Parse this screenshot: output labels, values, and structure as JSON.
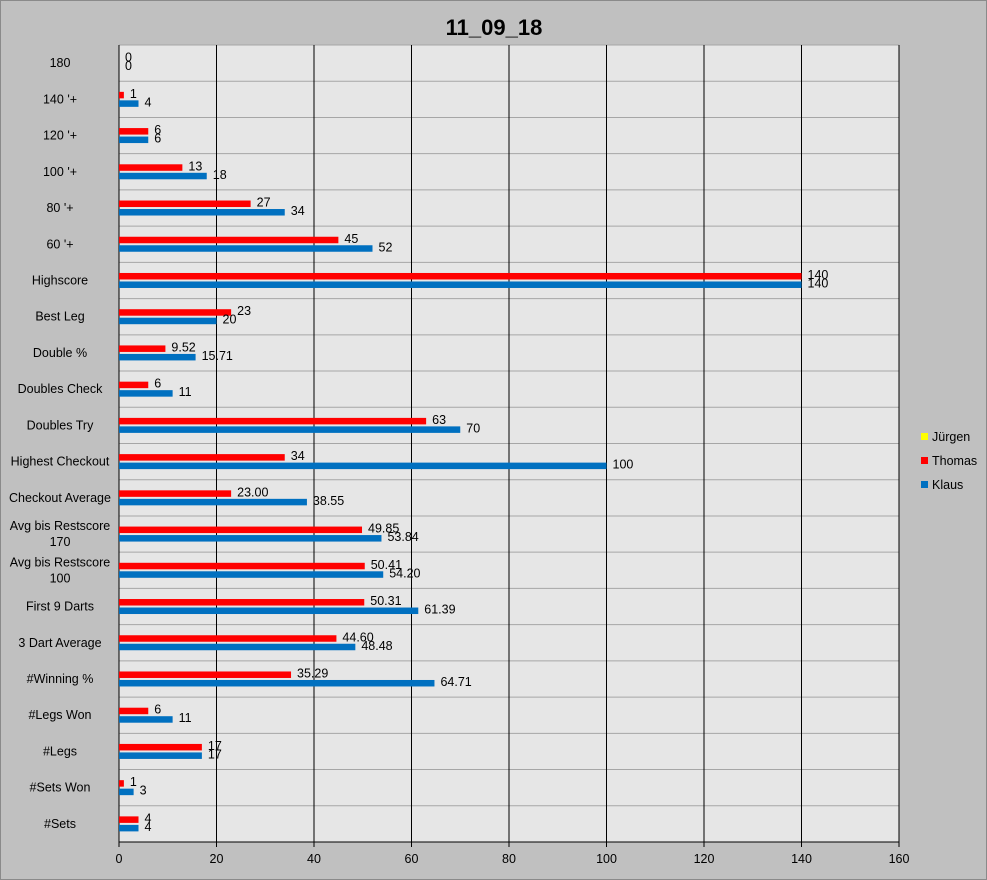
{
  "chart_data": {
    "type": "bar",
    "orientation": "horizontal",
    "title": "11_09_18",
    "xlim": [
      0,
      160
    ],
    "x_ticks": [
      0,
      20,
      40,
      60,
      80,
      100,
      120,
      140,
      160
    ],
    "grid": true,
    "legend_position": "right",
    "categories": [
      "180",
      "140 '+",
      "120 '+",
      "100 '+",
      "80 '+",
      "60 '+",
      "Highscore",
      "Best Leg",
      "Double %",
      "Doubles Check",
      "Doubles Try",
      "Highest Checkout",
      "Checkout Average",
      "Avg bis Restscore 170",
      "Avg bis Restscore 100",
      "First 9 Darts",
      "3 Dart Average",
      "#Winning %",
      "#Legs Won",
      "#Legs",
      "#Sets Won",
      "#Sets"
    ],
    "category_lines": {
      "Avg bis Restscore 170": [
        "Avg bis Restscore",
        "170"
      ],
      "Avg bis Restscore 100": [
        "Avg bis Restscore",
        "100"
      ]
    },
    "series": [
      {
        "name": "Jürgen",
        "color": "#ffff00",
        "values": [
          null,
          null,
          null,
          null,
          null,
          null,
          null,
          null,
          null,
          null,
          null,
          null,
          null,
          null,
          null,
          null,
          null,
          null,
          null,
          null,
          null,
          null
        ],
        "labels": []
      },
      {
        "name": "Thomas",
        "color": "#ff0000",
        "values": [
          0,
          1,
          6,
          13,
          27,
          45,
          140,
          23,
          9.52,
          6,
          63,
          34,
          23.0,
          49.85,
          50.41,
          50.31,
          44.6,
          35.29,
          6,
          17,
          1,
          4
        ],
        "labels": [
          "0",
          "1",
          "6",
          "13",
          "27",
          "45",
          "140",
          "23",
          "9.52",
          "6",
          "63",
          "34",
          "23.00",
          "49.85",
          "50.41",
          "50.31",
          "44.60",
          "35.29",
          "6",
          "17",
          "1",
          "4"
        ]
      },
      {
        "name": "Klaus",
        "color": "#0070c0",
        "values": [
          0,
          4,
          6,
          18,
          34,
          52,
          140,
          20,
          15.71,
          11,
          70,
          100,
          38.55,
          53.84,
          54.2,
          61.39,
          48.48,
          64.71,
          11,
          17,
          3,
          4
        ],
        "labels": [
          "0",
          "4",
          "6",
          "18",
          "34",
          "52",
          "140",
          "20",
          "15.71",
          "11",
          "70",
          "100",
          "38.55",
          "53.84",
          "54.20",
          "61.39",
          "48.48",
          "64.71",
          "11",
          "17",
          "3",
          "4"
        ]
      }
    ],
    "legend_order": [
      "Jürgen",
      "Thomas",
      "Klaus"
    ]
  },
  "colors": {
    "background": "#c0c0c0",
    "plot_area": "#e6e6e6",
    "gridline": "#000000"
  }
}
